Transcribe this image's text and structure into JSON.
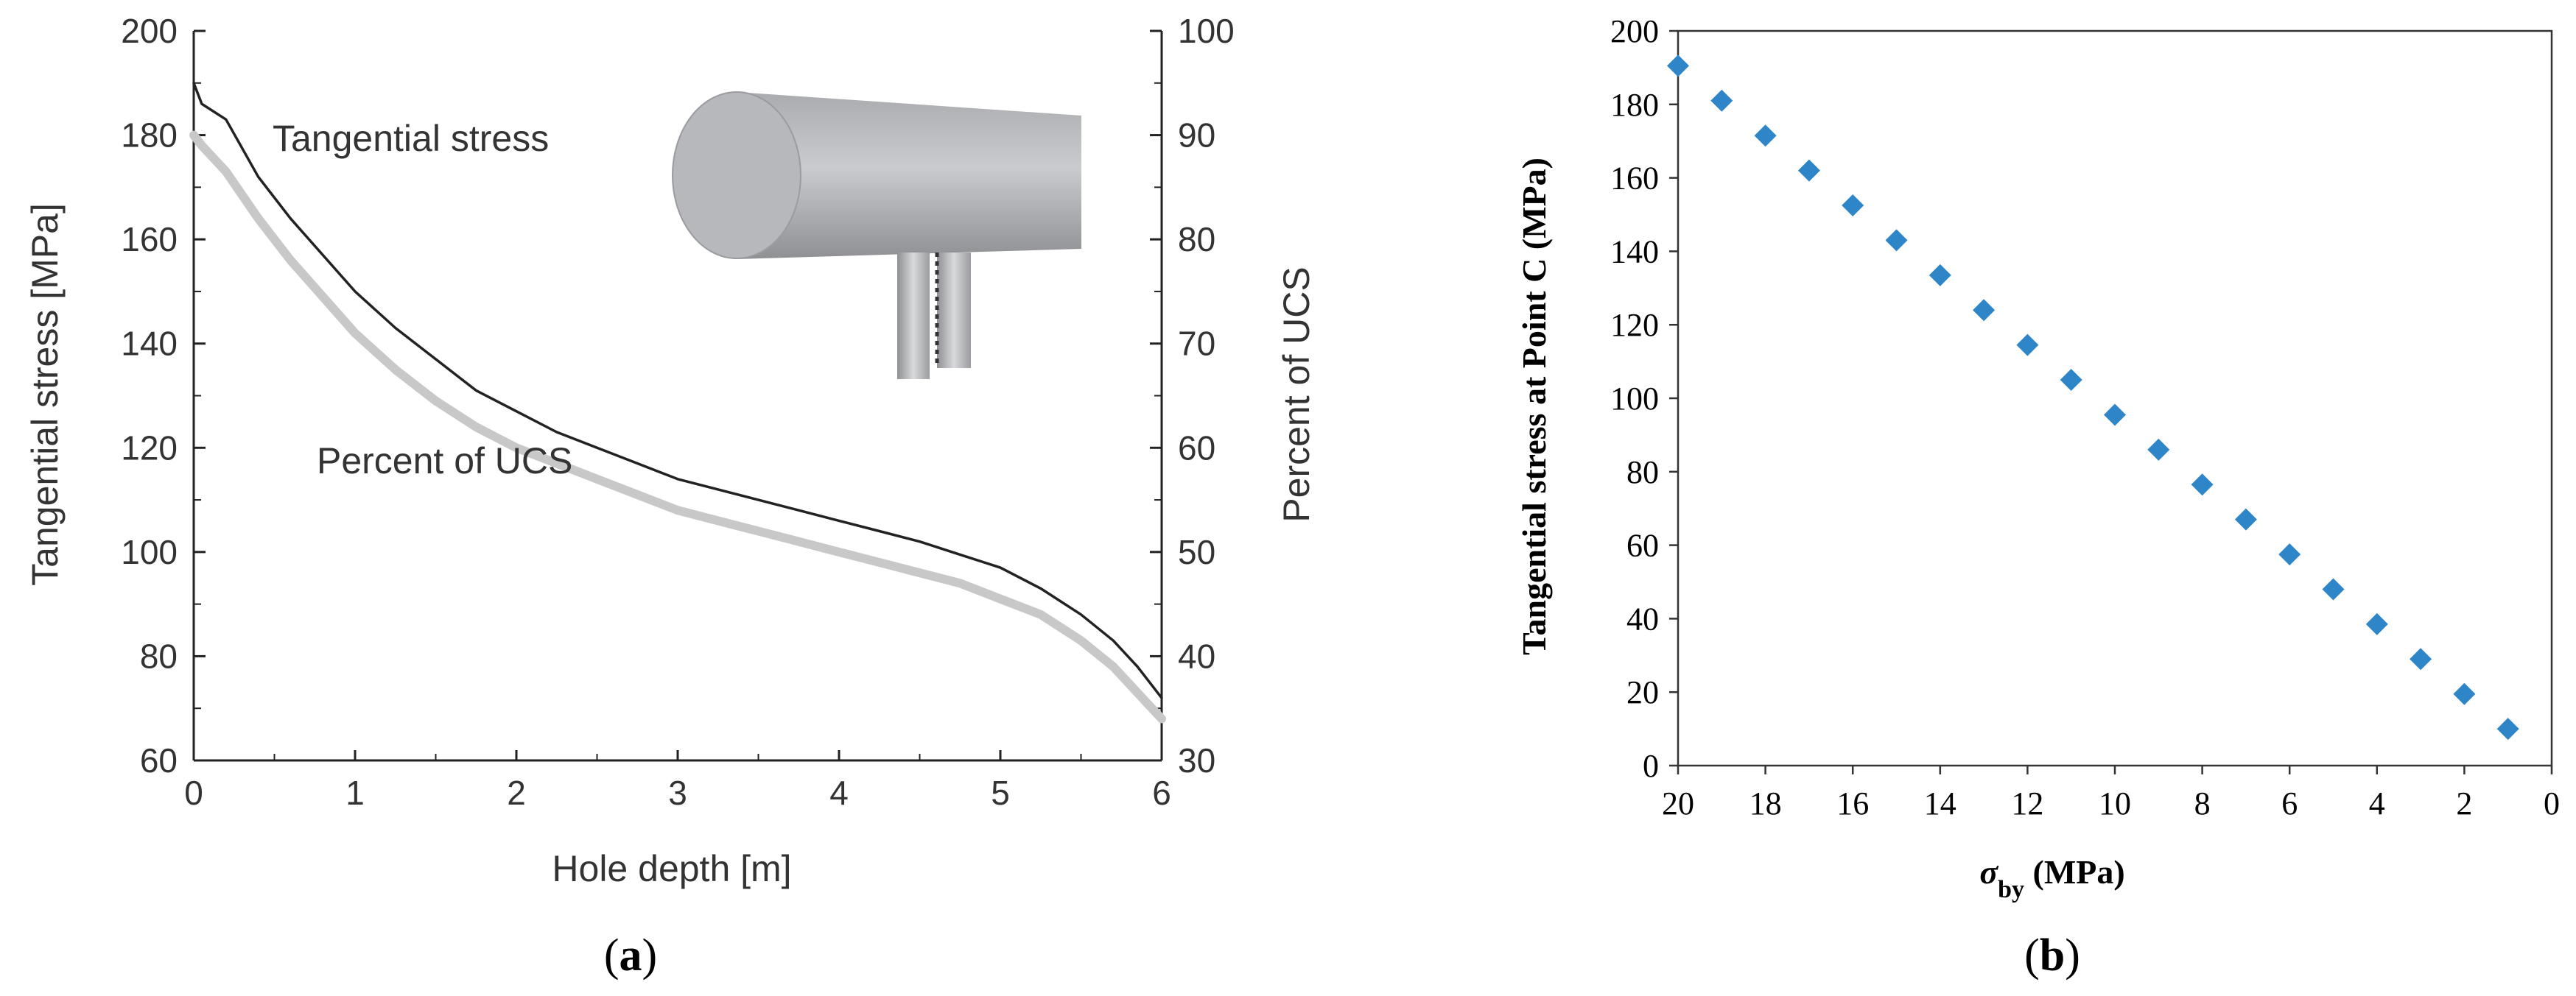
{
  "chart_data": [
    {
      "panel_label": "a",
      "type": "line",
      "xlabel": "Hole depth [m]",
      "ylabel_left": "Tangential stress [MPa]",
      "ylabel_right": "Percent of UCS",
      "xlim": [
        0,
        6
      ],
      "ylim_left": [
        60,
        200
      ],
      "ylim_right": [
        30,
        100
      ],
      "xticks": [
        "0",
        "1",
        "2",
        "3",
        "4",
        "5",
        "6"
      ],
      "yticks_left": [
        "60",
        "80",
        "100",
        "120",
        "140",
        "160",
        "180",
        "200"
      ],
      "yticks_right": [
        "30",
        "40",
        "50",
        "60",
        "70",
        "80",
        "90",
        "100"
      ],
      "grid": false,
      "series": [
        {
          "name": "Tangential stress",
          "color": "#222222",
          "axis": "left",
          "x": [
            0,
            0.05,
            0.2,
            0.4,
            0.6,
            0.8,
            1.0,
            1.25,
            1.5,
            1.75,
            2.0,
            2.25,
            2.5,
            2.75,
            3.0,
            3.25,
            3.5,
            3.75,
            4.0,
            4.25,
            4.5,
            4.75,
            5.0,
            5.25,
            5.5,
            5.7,
            5.85,
            6.0
          ],
          "y": [
            190,
            186,
            183,
            172,
            164,
            157,
            150,
            143,
            137,
            131,
            127,
            123,
            120,
            117,
            114,
            112,
            110,
            108,
            106,
            104,
            102,
            99.5,
            97,
            93,
            88,
            83,
            78,
            72
          ]
        },
        {
          "name": "Percent of UCS",
          "color": "#c8c8c8",
          "axis": "right",
          "x": [
            0,
            0.05,
            0.2,
            0.4,
            0.6,
            0.8,
            1.0,
            1.25,
            1.5,
            1.75,
            2.0,
            2.25,
            2.5,
            2.75,
            3.0,
            3.25,
            3.5,
            3.75,
            4.0,
            4.25,
            4.5,
            4.75,
            5.0,
            5.25,
            5.5,
            5.7,
            5.85,
            6.0
          ],
          "y": [
            90,
            89,
            86.5,
            82,
            78,
            74.5,
            71,
            67.5,
            64.5,
            62,
            60,
            58.5,
            57,
            55.5,
            54,
            53,
            52,
            51,
            50,
            49,
            48,
            47,
            45.5,
            44,
            41.5,
            39,
            36.5,
            34
          ]
        }
      ],
      "annotations": [
        "Tangential stress",
        "Percent of UCS"
      ]
    },
    {
      "panel_label": "b",
      "type": "scatter",
      "xlabel_symbol": "σ",
      "xlabel_subscript": "by",
      "xlabel_unit": " (MPa)",
      "ylabel": "Tangential stress at Point C (MPa)",
      "xlim": [
        20,
        0
      ],
      "ylim": [
        0,
        200
      ],
      "xticks": [
        "20",
        "18",
        "16",
        "14",
        "12",
        "10",
        "8",
        "6",
        "4",
        "2",
        "0"
      ],
      "yticks": [
        "0",
        "20",
        "40",
        "60",
        "80",
        "100",
        "120",
        "140",
        "160",
        "180",
        "200"
      ],
      "grid": false,
      "marker_color": "#2e86c9",
      "x": [
        20,
        19,
        18,
        17,
        16,
        15,
        14,
        13,
        12,
        11,
        10,
        9,
        8,
        7,
        6,
        5,
        4,
        3,
        2,
        1
      ],
      "y": [
        190.5,
        181,
        171.5,
        162,
        152.5,
        143,
        133.5,
        124,
        114.5,
        105,
        95.5,
        86,
        76.5,
        67,
        57.5,
        48,
        38.5,
        29,
        19.5,
        10
      ]
    }
  ]
}
